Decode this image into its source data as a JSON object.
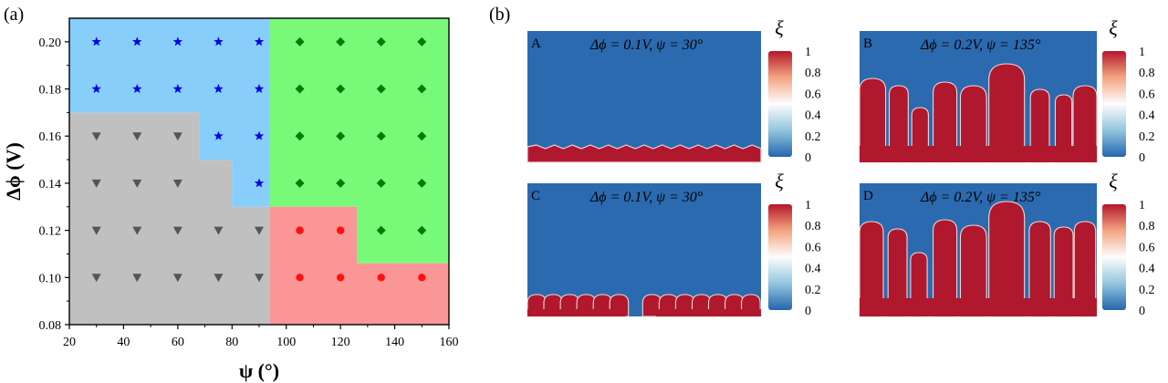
{
  "figure": {
    "label_a": "(a)",
    "label_b": "(b)"
  },
  "chart_data": [
    {
      "type": "scatter",
      "panel_label": "(a)",
      "xlabel": "ψ (°)",
      "ylabel": "Δϕ (V)",
      "xlim": [
        20,
        160
      ],
      "ylim": [
        0.08,
        0.21
      ],
      "x_ticks": [
        20,
        40,
        60,
        80,
        100,
        120,
        140,
        160
      ],
      "y_ticks": [
        0.08,
        0.1,
        0.12,
        0.14,
        0.16,
        0.18,
        0.2
      ],
      "x_tick_labels": [
        "20",
        "40",
        "60",
        "80",
        "100",
        "120",
        "140",
        "160"
      ],
      "y_tick_labels": [
        "0.08",
        "0.10",
        "0.12",
        "0.14",
        "0.16",
        "0.18",
        "0.20"
      ],
      "regions": [
        {
          "color": "#c0c0c0",
          "polygon": [
            [
              20,
              0.08
            ],
            [
              94,
              0.08
            ],
            [
              94,
              0.13
            ],
            [
              80,
              0.13
            ],
            [
              80,
              0.15
            ],
            [
              68,
              0.15
            ],
            [
              68,
              0.17
            ],
            [
              20,
              0.17
            ]
          ]
        },
        {
          "color": "#87cefa",
          "polygon": [
            [
              20,
              0.17
            ],
            [
              68,
              0.17
            ],
            [
              68,
              0.15
            ],
            [
              80,
              0.15
            ],
            [
              80,
              0.13
            ],
            [
              94,
              0.13
            ],
            [
              94,
              0.21
            ],
            [
              20,
              0.21
            ]
          ]
        },
        {
          "color": "#78fa78",
          "polygon": [
            [
              94,
              0.21
            ],
            [
              160,
              0.21
            ],
            [
              160,
              0.106
            ],
            [
              126,
              0.106
            ],
            [
              126,
              0.13
            ],
            [
              94,
              0.13
            ]
          ]
        },
        {
          "color": "#fa9696",
          "polygon": [
            [
              94,
              0.08
            ],
            [
              160,
              0.08
            ],
            [
              160,
              0.106
            ],
            [
              126,
              0.106
            ],
            [
              126,
              0.13
            ],
            [
              94,
              0.13
            ]
          ]
        }
      ],
      "series": [
        {
          "marker": "triangle-down",
          "color": "#555555",
          "x": [
            30,
            45,
            60,
            75,
            90,
            30,
            45,
            60,
            75,
            90,
            30,
            45,
            60,
            30,
            45,
            60
          ],
          "y": [
            0.1,
            0.1,
            0.1,
            0.1,
            0.1,
            0.12,
            0.12,
            0.12,
            0.12,
            0.12,
            0.14,
            0.14,
            0.14,
            0.16,
            0.16,
            0.16
          ]
        },
        {
          "marker": "star",
          "color": "#0000e6",
          "x": [
            30,
            45,
            60,
            75,
            90,
            30,
            45,
            60,
            75,
            90,
            75,
            90,
            90
          ],
          "y": [
            0.2,
            0.2,
            0.2,
            0.2,
            0.2,
            0.18,
            0.18,
            0.18,
            0.18,
            0.18,
            0.16,
            0.16,
            0.14
          ]
        },
        {
          "marker": "diamond",
          "color": "#007a00",
          "x": [
            105,
            120,
            135,
            150,
            105,
            120,
            135,
            150,
            105,
            120,
            135,
            150,
            105,
            120,
            135,
            150,
            135,
            150
          ],
          "y": [
            0.2,
            0.2,
            0.2,
            0.2,
            0.18,
            0.18,
            0.18,
            0.18,
            0.16,
            0.16,
            0.16,
            0.16,
            0.14,
            0.14,
            0.14,
            0.14,
            0.12,
            0.12
          ]
        },
        {
          "marker": "circle",
          "color": "#ff1010",
          "x": [
            105,
            120,
            105,
            120,
            135,
            150
          ],
          "y": [
            0.12,
            0.12,
            0.1,
            0.1,
            0.1,
            0.1
          ]
        }
      ]
    },
    {
      "type": "heatmap",
      "panel_label": "(b)",
      "colorbar": {
        "title": "ξ",
        "ticks": [
          "1",
          "0.8",
          "0.6",
          "0.4",
          "0.2",
          "0"
        ],
        "colors": [
          "#b5172b",
          "#f4a582",
          "#fdfdfd",
          "#92c5de",
          "#2466ad"
        ]
      },
      "panels": [
        {
          "letter": "A",
          "title": "Δϕ = 0.1V, ψ = 30°",
          "pattern": "thin-film"
        },
        {
          "letter": "B",
          "title": "Δϕ = 0.2V, ψ = 135°",
          "pattern": "tall-fingers"
        },
        {
          "letter": "C",
          "title": "Δϕ = 0.1V, ψ = 30°",
          "pattern": "bumps"
        },
        {
          "letter": "D",
          "title": "Δϕ = 0.2V, ψ = 135°",
          "pattern": "tall-fingers-2"
        }
      ],
      "field_colors": {
        "matrix": "#2b6aaf",
        "deposit": "#b0182e",
        "interface": "#f0d8d8"
      }
    }
  ]
}
